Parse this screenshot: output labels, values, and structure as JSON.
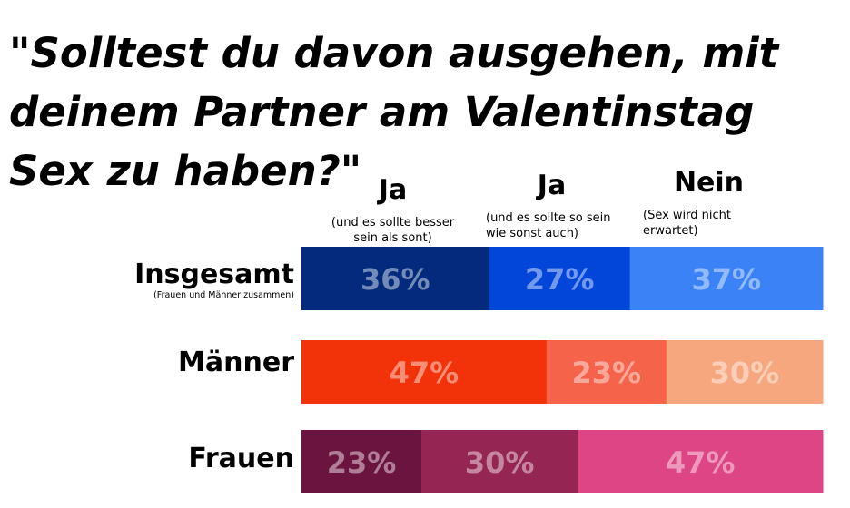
{
  "chart_data": {
    "type": "bar",
    "orientation": "horizontal",
    "stacked": true,
    "normalized": true,
    "title": "\"Solltest du davon ausgehen, mit deinem Partner am Valentinstag Sex zu haben?\"",
    "categories": [
      {
        "label": "Insgesamt",
        "sublabel": "(Frauen und Männer zusammen)"
      },
      {
        "label": "Männer",
        "sublabel": ""
      },
      {
        "label": "Frauen",
        "sublabel": ""
      }
    ],
    "columns": [
      {
        "label": "Ja",
        "sublabel": "(und es sollte besser sein als sont)"
      },
      {
        "label": "Ja",
        "sublabel": "(und es sollte so sein wie sonst auch)"
      },
      {
        "label": "Nein",
        "sublabel": "(Sex wird nicht erwartet)"
      }
    ],
    "values": [
      [
        36,
        27,
        37
      ],
      [
        47,
        23,
        30
      ],
      [
        23,
        30,
        47
      ]
    ],
    "value_labels": [
      [
        "36%",
        "27%",
        "37%"
      ],
      [
        "47%",
        "23%",
        "30%"
      ],
      [
        "23%",
        "30%",
        "47%"
      ]
    ],
    "colors": [
      [
        "#032a7c",
        "#0246d9",
        "#3b82f6"
      ],
      [
        "#f23208",
        "#f5634b",
        "#f6a77e"
      ],
      [
        "#6b1440",
        "#952653",
        "#de4584"
      ]
    ],
    "label_color": "#ffffff",
    "label_opacity": 0.45,
    "xlim": [
      0,
      100
    ],
    "legend": "top",
    "grid": false
  }
}
